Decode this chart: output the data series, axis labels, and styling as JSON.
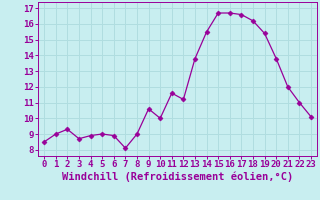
{
  "x": [
    0,
    1,
    2,
    3,
    4,
    5,
    6,
    7,
    8,
    9,
    10,
    11,
    12,
    13,
    14,
    15,
    16,
    17,
    18,
    19,
    20,
    21,
    22,
    23
  ],
  "y": [
    8.5,
    9.0,
    9.3,
    8.7,
    8.9,
    9.0,
    8.9,
    8.1,
    9.0,
    10.6,
    10.0,
    11.6,
    11.2,
    13.8,
    15.5,
    16.7,
    16.7,
    16.6,
    16.2,
    15.4,
    13.8,
    12.0,
    11.0,
    10.1
  ],
  "line_color": "#990099",
  "marker": "D",
  "marker_size": 2.5,
  "bg_color": "#c8eef0",
  "grid_color": "#b0dde0",
  "xlabel": "Windchill (Refroidissement éolien,°C)",
  "yticks": [
    8,
    9,
    10,
    11,
    12,
    13,
    14,
    15,
    16,
    17
  ],
  "xticks": [
    0,
    1,
    2,
    3,
    4,
    5,
    6,
    7,
    8,
    9,
    10,
    11,
    12,
    13,
    14,
    15,
    16,
    17,
    18,
    19,
    20,
    21,
    22,
    23
  ],
  "ylim": [
    7.6,
    17.4
  ],
  "xlim": [
    -0.5,
    23.5
  ],
  "tick_fontsize": 6.5,
  "label_fontsize": 7.5
}
